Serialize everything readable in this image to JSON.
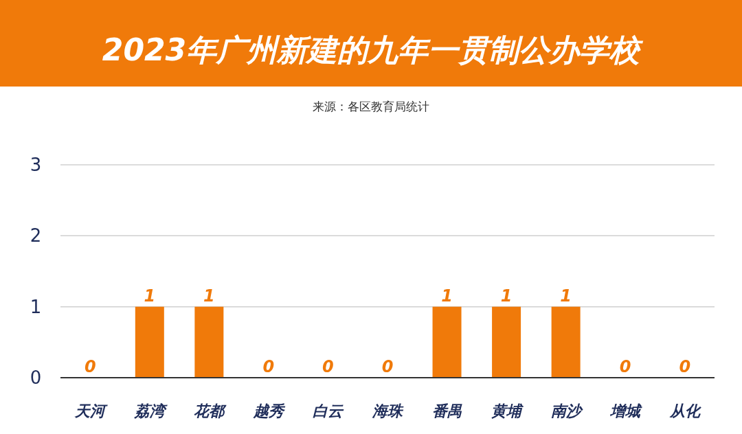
{
  "chart_data": {
    "type": "bar",
    "title": "2023年广州新建的九年一贯制公办学校",
    "annotations": [
      "来源：各区教育局统计"
    ],
    "categories": [
      "天河",
      "荔湾",
      "花都",
      "越秀",
      "白云",
      "海珠",
      "番禺",
      "黄埔",
      "南沙",
      "增城",
      "从化"
    ],
    "values": [
      0,
      1,
      1,
      0,
      0,
      0,
      1,
      1,
      1,
      0,
      0
    ],
    "color": "#f07a0a",
    "ylim": [
      0,
      3
    ],
    "yticks": [
      0,
      1,
      2,
      3
    ],
    "grid": "y",
    "data_labels": true
  }
}
